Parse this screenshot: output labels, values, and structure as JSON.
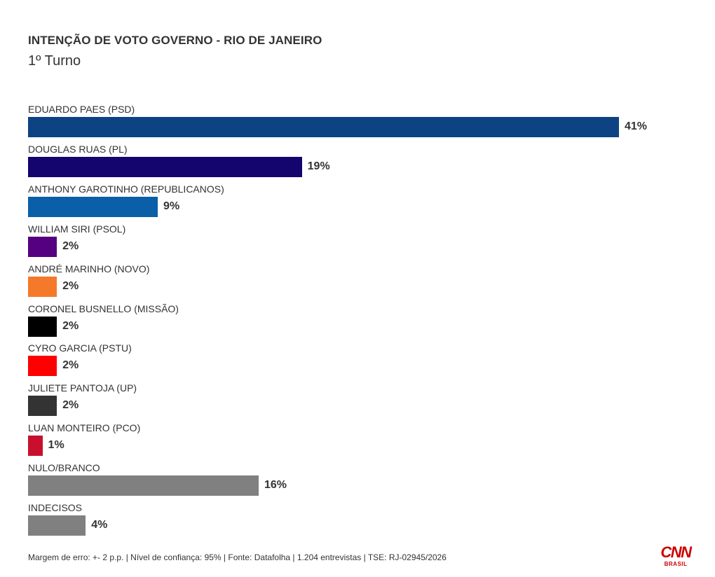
{
  "chart_data": {
    "type": "bar",
    "orientation": "horizontal",
    "title": "INTENÇÃO DE VOTO GOVERNO - RIO DE JANEIRO",
    "subtitle": "1º Turno",
    "xlim": [
      0,
      41
    ],
    "unit": "%",
    "categories": [
      "EDUARDO PAES (PSD)",
      "DOUGLAS RUAS (PL)",
      "ANTHONY GAROTINHO (REPUBLICANOS)",
      "WILLIAM SIRI (PSOL)",
      "ANDRÉ MARINHO (NOVO)",
      "CORONEL BUSNELLO (MISSÃO)",
      "CYRO GARCIA (PSTU)",
      "JULIETE PANTOJA (UP)",
      "LUAN MONTEIRO (PCO)",
      "NULO/BRANCO",
      "INDECISOS"
    ],
    "values": [
      41,
      19,
      9,
      2,
      2,
      2,
      2,
      2,
      1,
      16,
      4
    ],
    "value_labels": [
      "41%",
      "19%",
      "9%",
      "2%",
      "2%",
      "2%",
      "2%",
      "2%",
      "1%",
      "16%",
      "4%"
    ],
    "colors": [
      "#0d4283",
      "#14046e",
      "#0b5ea8",
      "#550080",
      "#f5792a",
      "#000000",
      "#ff0000",
      "#333333",
      "#c8102e",
      "#808080",
      "#808080"
    ],
    "grid": false,
    "legend": "none"
  },
  "footer": "Margem de erro: +- 2 p.p. | Nível de confiança: 95% | Fonte: Datafolha | 1.204 entrevistas | TSE: RJ-02945/2026",
  "logo": {
    "name": "CNN",
    "sub": "BRASIL",
    "color": "#cc0000"
  }
}
